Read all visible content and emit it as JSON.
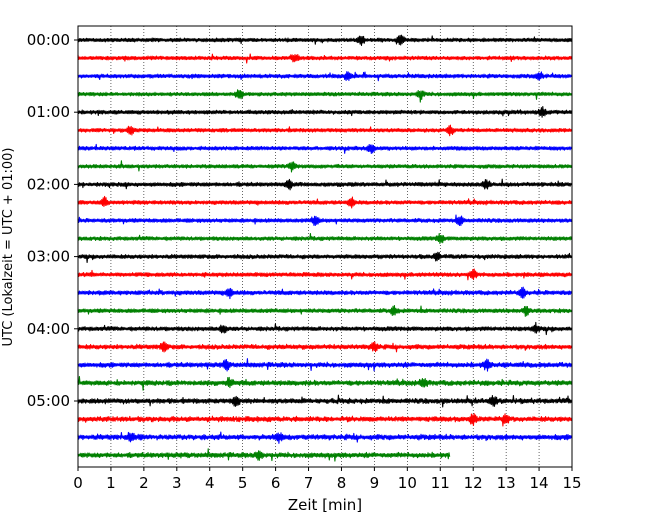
{
  "chart_data": {
    "type": "line",
    "title": "",
    "xlabel": "Zeit  [min]",
    "ylabel": "UTC (Lokalzeit = UTC + 01:00)",
    "xlim": [
      0,
      15
    ],
    "x_ticks": [
      "0",
      "1",
      "2",
      "3",
      "4",
      "5",
      "6",
      "7",
      "8",
      "9",
      "10",
      "11",
      "12",
      "13",
      "14",
      "15"
    ],
    "grid": "vertical dotted",
    "y_ticks": [
      {
        "label": "00:00",
        "trace_index": 0
      },
      {
        "label": "01:00",
        "trace_index": 4
      },
      {
        "label": "02:00",
        "trace_index": 8
      },
      {
        "label": "03:00",
        "trace_index": 12
      },
      {
        "label": "04:00",
        "trace_index": 16
      },
      {
        "label": "05:00",
        "trace_index": 20
      }
    ],
    "trace_colors": [
      "#000000",
      "#ff0000",
      "#0000ff",
      "#008000"
    ],
    "traces": [
      {
        "start": "00:00",
        "end_min": 15,
        "activity": 0.5,
        "events": [
          8.6,
          9.8
        ]
      },
      {
        "start": "00:15",
        "end_min": 15,
        "activity": 0.5,
        "events": [
          6.6
        ]
      },
      {
        "start": "00:30",
        "end_min": 15,
        "activity": 0.6,
        "events": [
          8.2,
          14.0
        ]
      },
      {
        "start": "00:45",
        "end_min": 15,
        "activity": 0.5,
        "events": [
          4.9,
          10.4
        ]
      },
      {
        "start": "01:00",
        "end_min": 15,
        "activity": 0.6,
        "events": [
          14.1
        ]
      },
      {
        "start": "01:15",
        "end_min": 15,
        "activity": 0.5,
        "events": [
          1.6,
          11.3
        ]
      },
      {
        "start": "01:30",
        "end_min": 15,
        "activity": 0.6,
        "events": [
          8.9
        ]
      },
      {
        "start": "01:45",
        "end_min": 15,
        "activity": 0.5,
        "events": [
          6.5
        ]
      },
      {
        "start": "02:00",
        "end_min": 15,
        "activity": 0.7,
        "events": [
          6.4,
          12.4
        ]
      },
      {
        "start": "02:15",
        "end_min": 15,
        "activity": 0.6,
        "events": [
          0.8,
          8.3
        ]
      },
      {
        "start": "02:30",
        "end_min": 15,
        "activity": 0.6,
        "events": [
          7.2,
          11.6
        ]
      },
      {
        "start": "02:45",
        "end_min": 15,
        "activity": 0.6,
        "events": [
          11.0
        ]
      },
      {
        "start": "03:00",
        "end_min": 15,
        "activity": 0.7,
        "events": [
          10.9
        ]
      },
      {
        "start": "03:15",
        "end_min": 15,
        "activity": 0.7,
        "events": [
          12.0
        ]
      },
      {
        "start": "03:30",
        "end_min": 15,
        "activity": 0.8,
        "events": [
          4.6,
          13.5
        ]
      },
      {
        "start": "03:45",
        "end_min": 15,
        "activity": 0.7,
        "events": [
          9.6,
          13.6
        ]
      },
      {
        "start": "04:00",
        "end_min": 15,
        "activity": 0.8,
        "events": [
          4.4,
          13.9
        ]
      },
      {
        "start": "04:15",
        "end_min": 15,
        "activity": 1.0,
        "events": [
          2.6,
          9.0
        ]
      },
      {
        "start": "04:30",
        "end_min": 15,
        "activity": 1.1,
        "events": [
          4.5,
          12.4
        ]
      },
      {
        "start": "04:45",
        "end_min": 15,
        "activity": 1.2,
        "events": [
          4.6,
          10.5
        ]
      },
      {
        "start": "05:00",
        "end_min": 15,
        "activity": 1.2,
        "events": [
          4.8,
          12.6
        ]
      },
      {
        "start": "05:15",
        "end_min": 15,
        "activity": 1.3,
        "events": [
          12.0,
          13.0
        ]
      },
      {
        "start": "05:30",
        "end_min": 15,
        "activity": 1.4,
        "events": [
          1.6,
          6.1
        ]
      },
      {
        "start": "05:45",
        "end_min": 11.3,
        "activity": 1.2,
        "events": [
          5.5
        ]
      }
    ]
  }
}
